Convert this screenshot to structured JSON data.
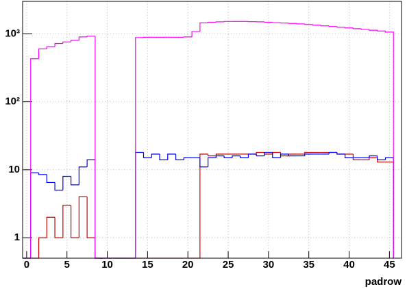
{
  "chart_data": {
    "type": "histogram",
    "xlabel": "padrow",
    "log_y": true,
    "grid": true,
    "xlim": [
      -0.5,
      46.5
    ],
    "ylim": [
      0.5,
      3000
    ],
    "xticks": [
      0,
      5,
      10,
      15,
      20,
      25,
      30,
      35,
      40,
      45
    ],
    "yticks": [
      1,
      10,
      {
        "value": 100,
        "label": "10²"
      },
      {
        "value": 1000,
        "label": "10³"
      }
    ],
    "bins": [
      -0.5,
      0.5,
      1.5,
      2.5,
      3.5,
      4.5,
      5.5,
      6.5,
      7.5,
      8.5,
      9.5,
      10.5,
      11.5,
      12.5,
      13.5,
      14.5,
      15.5,
      16.5,
      17.5,
      18.5,
      19.5,
      20.5,
      21.5,
      22.5,
      23.5,
      24.5,
      25.5,
      26.5,
      27.5,
      28.5,
      29.5,
      30.5,
      31.5,
      32.5,
      33.5,
      34.5,
      35.5,
      36.5,
      37.5,
      38.5,
      39.5,
      40.5,
      41.5,
      42.5,
      43.5,
      44.5,
      45.5
    ],
    "series": [
      {
        "color": "#cc0000",
        "values": [
          0,
          0,
          1,
          2,
          1,
          3,
          1,
          4,
          1,
          0,
          0,
          0,
          0,
          0,
          0,
          0,
          0,
          0,
          0,
          0,
          0,
          0,
          17,
          16,
          17,
          17,
          17,
          17,
          17,
          18,
          17,
          18,
          16,
          17,
          17,
          18,
          18,
          18,
          18,
          17,
          17,
          14,
          14,
          15,
          13,
          13
        ]
      },
      {
        "color": "#0000ff",
        "values": [
          0,
          9,
          8.5,
          6.5,
          5,
          8,
          6,
          11,
          14,
          0,
          0,
          0,
          0,
          0,
          18,
          15,
          17,
          14,
          17,
          14,
          15,
          15,
          11,
          15,
          16,
          15,
          16,
          15,
          17,
          16,
          18,
          15,
          17,
          16,
          16,
          17,
          17,
          17,
          18,
          17,
          15,
          15,
          15,
          16,
          14,
          15
        ]
      },
      {
        "color": "#ff00ff",
        "values": [
          0,
          430,
          600,
          650,
          720,
          760,
          800,
          900,
          920,
          0,
          0,
          0,
          0,
          0,
          880,
          890,
          890,
          890,
          890,
          890,
          900,
          1080,
          1450,
          1480,
          1500,
          1520,
          1520,
          1520,
          1510,
          1500,
          1480,
          1460,
          1440,
          1420,
          1400,
          1370,
          1340,
          1310,
          1280,
          1250,
          1220,
          1190,
          1160,
          1130,
          1100,
          1060
        ]
      }
    ]
  }
}
